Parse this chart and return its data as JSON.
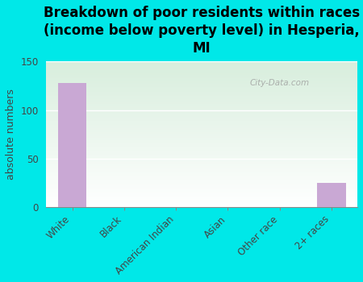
{
  "title": "Breakdown of poor residents within races\n(income below poverty level) in Hesperia,\nMI",
  "categories": [
    "White",
    "Black",
    "American Indian",
    "Asian",
    "Other race",
    "2+ races"
  ],
  "values": [
    128,
    0,
    0,
    0,
    0,
    25
  ],
  "bar_color": "#c9a8d4",
  "ylabel": "absolute numbers",
  "ylim": [
    0,
    150
  ],
  "yticks": [
    0,
    50,
    100,
    150
  ],
  "background_color": "#00e8e8",
  "plot_bg_top": "#d8eedd",
  "plot_bg_bottom": "#ffffff",
  "grid_color": "#ffffff",
  "watermark": "City-Data.com",
  "title_fontsize": 12,
  "ylabel_fontsize": 9,
  "tick_fontsize": 8.5
}
